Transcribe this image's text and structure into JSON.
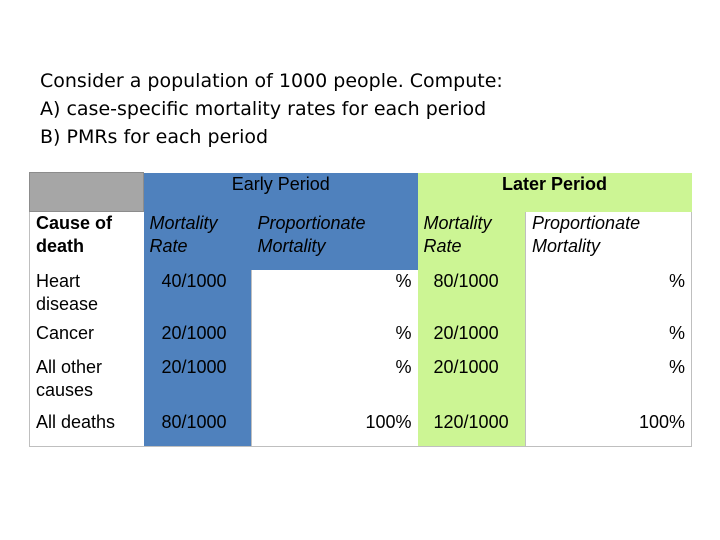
{
  "prompt": {
    "line1": "Consider a population of 1000 people.  Compute:",
    "line2": "A)  case-specific mortality rates for each period",
    "line3": "B)  PMRs for each period"
  },
  "table": {
    "group_headers": {
      "early": "Early Period",
      "later": "Later Period"
    },
    "sub_headers": {
      "cause": "Cause of death",
      "early_rate": "Mortality Rate",
      "early_pm": "Proportionate Mortality",
      "later_rate": "Mortality Rate",
      "later_pm": "Proportionate Mortality"
    },
    "rows": [
      {
        "cause": "Heart disease",
        "early_rate": "40/1000",
        "early_pm": "%",
        "later_rate": "80/1000",
        "later_pm": "%"
      },
      {
        "cause": "Cancer",
        "early_rate": "20/1000",
        "early_pm": "%",
        "later_rate": "20/1000",
        "later_pm": "%"
      },
      {
        "cause": "All other causes",
        "early_rate": "20/1000",
        "early_pm": "%",
        "later_rate": "20/1000",
        "later_pm": "%"
      },
      {
        "cause": "All deaths",
        "early_rate": "80/1000",
        "early_pm": "100%",
        "later_rate": "120/1000",
        "later_pm": "100%"
      }
    ]
  },
  "colors": {
    "header_grey": "#a6a6a6",
    "early_blue": "#4f81bd",
    "later_green": "#ccf594"
  }
}
